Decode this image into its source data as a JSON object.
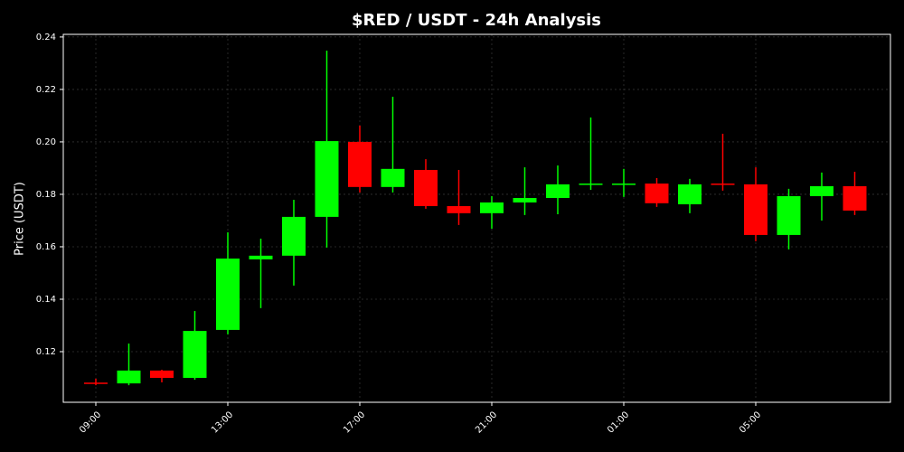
{
  "chart_data": {
    "type": "candlestick",
    "title": "$RED / USDT - 24h Analysis",
    "y_label": "Price (USDT)",
    "categories": [
      "09:00",
      null,
      null,
      null,
      "13:00",
      null,
      null,
      null,
      "17:00",
      null,
      null,
      null,
      "21:00",
      null,
      null,
      null,
      "01:00",
      null,
      null,
      null,
      "05:00",
      null,
      null,
      null
    ],
    "open": [
      0.1082,
      0.1079,
      0.1128,
      0.11,
      0.1283,
      0.1552,
      0.1566,
      0.1714,
      0.2,
      0.1828,
      0.1893,
      0.1755,
      0.1728,
      0.1769,
      0.1786,
      0.1838,
      0.1838,
      0.1841,
      0.1762,
      0.1841,
      0.1838,
      0.1645,
      0.1793,
      0.1831
    ],
    "high": [
      0.1097,
      0.1231,
      0.1131,
      0.1355,
      0.1655,
      0.1631,
      0.1779,
      0.2348,
      0.2062,
      0.2172,
      0.1934,
      0.1893,
      0.1793,
      0.1903,
      0.191,
      0.2093,
      0.1897,
      0.1862,
      0.1859,
      0.2031,
      0.1903,
      0.1821,
      0.1883,
      0.1886
    ],
    "low": [
      0.1072,
      0.1072,
      0.1083,
      0.1093,
      0.1266,
      0.1366,
      0.1452,
      0.1597,
      0.1807,
      0.1807,
      0.1745,
      0.1683,
      0.1669,
      0.1721,
      0.1724,
      0.1817,
      0.179,
      0.1752,
      0.1728,
      0.1814,
      0.1621,
      0.159,
      0.17,
      0.1721
    ],
    "close": [
      0.1079,
      0.1128,
      0.11,
      0.1279,
      0.1555,
      0.1566,
      0.1714,
      0.2003,
      0.1828,
      0.1897,
      0.1755,
      0.1728,
      0.1769,
      0.1786,
      0.1838,
      0.1841,
      0.1841,
      0.1766,
      0.1838,
      0.1838,
      0.1645,
      0.1793,
      0.1831,
      0.1738
    ],
    "up_color": "#00ff00",
    "down_color": "#ff0000",
    "ylim": [
      0.1007,
      0.241
    ],
    "yticks": [
      0.12,
      0.14,
      0.16,
      0.18,
      {
        "value": 0.2,
        "label": "0.20"
      },
      0.22,
      0.24
    ],
    "grid": true
  }
}
